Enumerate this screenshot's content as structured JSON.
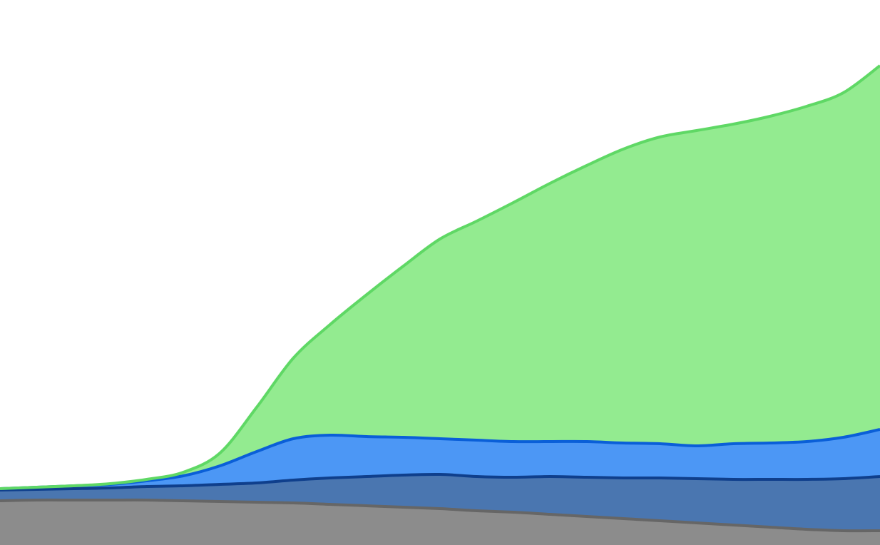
{
  "chart_data": {
    "type": "area",
    "stacked": true,
    "smooth": true,
    "title": "",
    "xlabel": "",
    "ylabel": "",
    "grid": false,
    "legend": "none",
    "x": [
      0,
      1,
      2,
      3,
      4,
      5,
      6,
      7,
      8,
      9,
      10,
      11,
      12,
      13,
      14,
      15,
      16,
      17,
      18,
      19,
      20,
      21,
      22,
      23,
      24
    ],
    "ylim": [
      0,
      764
    ],
    "series": [
      {
        "color": "#8c8c8c",
        "line_color": "#666666",
        "values": [
          62,
          63,
          63,
          63,
          63,
          62,
          61,
          60,
          59,
          57,
          55,
          53,
          51,
          48,
          46,
          43,
          40,
          37,
          34,
          31,
          28,
          25,
          22,
          20,
          20
        ]
      },
      {
        "color": "#4a76b0",
        "line_color": "#0f3f8c",
        "values": [
          15,
          15,
          16,
          17,
          19,
          21,
          24,
          27,
          32,
          37,
          41,
          45,
          48,
          48,
          49,
          53,
          55,
          57,
          60,
          62,
          64,
          67,
          70,
          73,
          76
        ]
      },
      {
        "color": "#4c97f5",
        "line_color": "#0a5fd8",
        "values": [
          2,
          3,
          4,
          5,
          8,
          14,
          26,
          44,
          58,
          60,
          56,
          53,
          50,
          51,
          50,
          49,
          50,
          49,
          48,
          46,
          50,
          51,
          53,
          58,
          66
        ]
      },
      {
        "color": "#93eb90",
        "line_color": "#5fd865",
        "values": [
          0,
          0,
          0,
          1,
          2,
          5,
          18,
          62,
          113,
          155,
          199,
          240,
          280,
          307,
          335,
          362,
          387,
          412,
          430,
          442,
          448,
          458,
          470,
          483,
          510
        ]
      }
    ]
  }
}
